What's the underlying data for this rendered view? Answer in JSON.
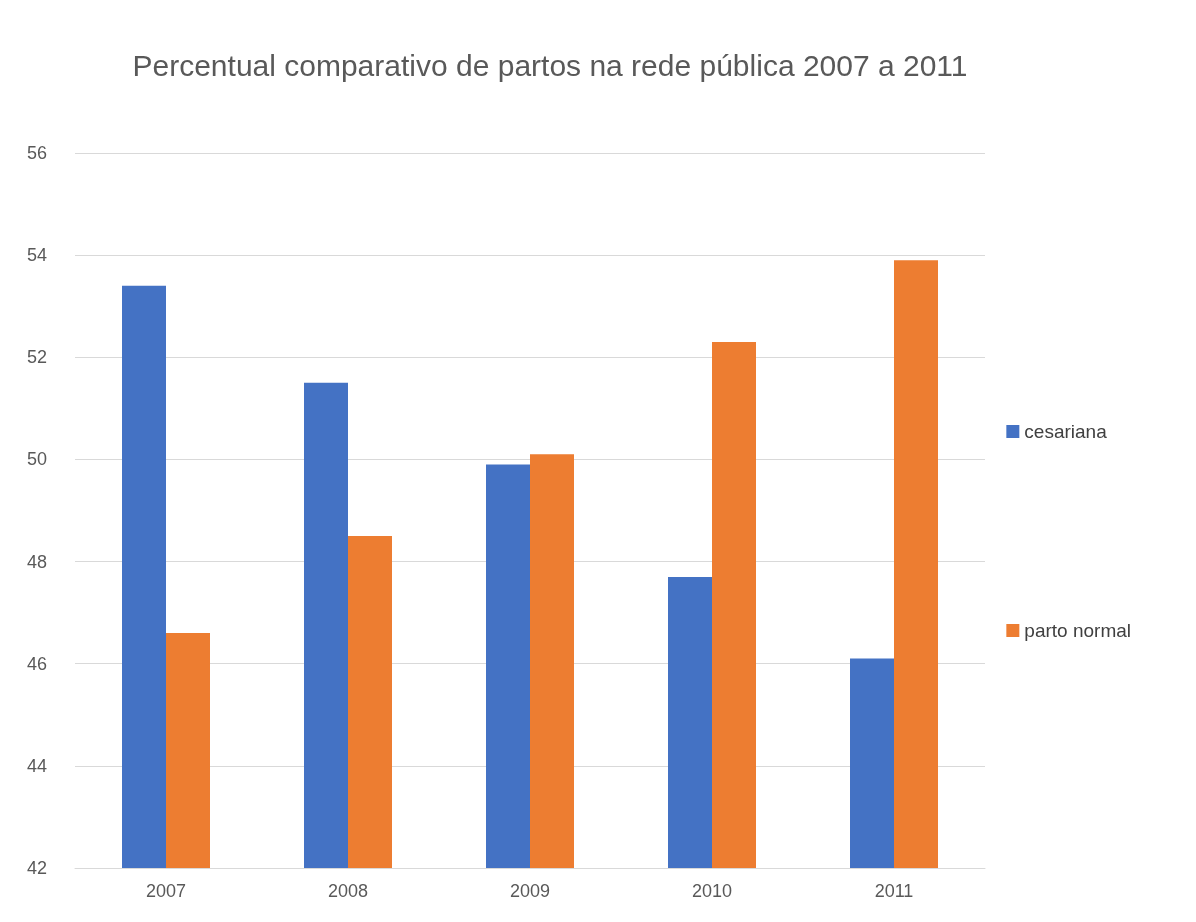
{
  "chart_data": {
    "type": "bar",
    "title": "Percentual comparativo de partos na rede pública 2007 a 2011",
    "categories": [
      "2007",
      "2008",
      "2009",
      "2010",
      "2011"
    ],
    "series": [
      {
        "name": "cesariana",
        "color": "#4472c4",
        "values": [
          53.4,
          51.5,
          49.9,
          47.7,
          46.1
        ]
      },
      {
        "name": "parto normal",
        "color": "#ed7d31",
        "values": [
          46.6,
          48.5,
          50.1,
          52.3,
          53.9
        ]
      }
    ],
    "ylim": [
      42,
      56
    ],
    "yticks": [
      42,
      44,
      46,
      48,
      50,
      52,
      54,
      56
    ],
    "grid": "y",
    "legend": "right"
  }
}
